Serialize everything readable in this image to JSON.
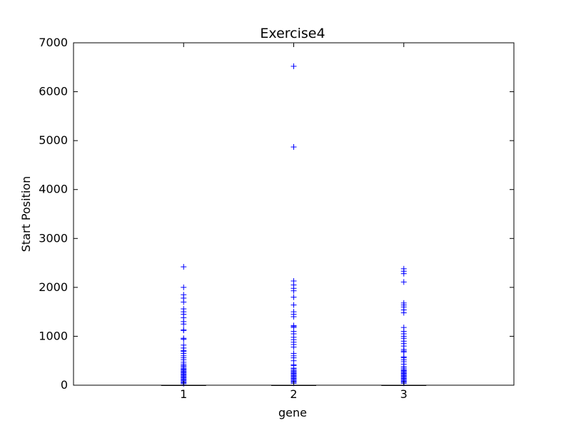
{
  "chart_data": {
    "type": "boxplot",
    "title": "Exercise4",
    "xlabel": "gene",
    "ylabel": "Start Position",
    "ylim": [
      0,
      7000
    ],
    "yticks": [
      0,
      1000,
      2000,
      3000,
      4000,
      5000,
      6000,
      7000
    ],
    "ytick_labels": [
      "0",
      "1000",
      "2000",
      "3000",
      "4000",
      "5000",
      "6000",
      "7000"
    ],
    "categories": [
      "1",
      "2",
      "3"
    ],
    "grid": false,
    "colors": {
      "outlier": "#0000ff",
      "median": "#ff0000",
      "box": "#000000"
    },
    "boxes": [
      {
        "category": "1",
        "median": 0,
        "q1": 0,
        "q3": 0,
        "whisker_low": 0,
        "whisker_high": 0,
        "outliers": [
          2420,
          2000,
          1850,
          1780,
          1700,
          1560,
          1500,
          1450,
          1380,
          1300,
          1250,
          1130,
          1120,
          960,
          940,
          820,
          760,
          710,
          690,
          650,
          600,
          560,
          520,
          470,
          430,
          400,
          380,
          350,
          330,
          310,
          290,
          270,
          250,
          230,
          210,
          190,
          170,
          150,
          130,
          110,
          90,
          70,
          50,
          30
        ]
      },
      {
        "category": "2",
        "median": 0,
        "q1": 0,
        "q3": 0,
        "whisker_low": 0,
        "whisker_high": 0,
        "outliers": [
          6520,
          4870,
          2130,
          2050,
          1980,
          1930,
          1800,
          1640,
          1500,
          1450,
          1400,
          1220,
          1200,
          1180,
          1100,
          1050,
          980,
          930,
          880,
          830,
          780,
          650,
          600,
          560,
          500,
          420,
          400,
          350,
          330,
          300,
          280,
          260,
          240,
          220,
          200,
          180,
          160,
          140,
          120,
          100,
          80,
          60,
          40
        ]
      },
      {
        "category": "3",
        "median": 0,
        "q1": 0,
        "q3": 0,
        "whisker_low": 0,
        "whisker_high": 0,
        "outliers": [
          2380,
          2330,
          2280,
          2110,
          1680,
          1640,
          1600,
          1540,
          1480,
          1180,
          1100,
          1050,
          1000,
          960,
          900,
          850,
          800,
          730,
          700,
          680,
          580,
          560,
          520,
          480,
          430,
          380,
          350,
          320,
          300,
          280,
          260,
          240,
          220,
          200,
          180,
          160,
          140,
          120,
          100,
          80,
          60,
          40
        ]
      }
    ]
  }
}
